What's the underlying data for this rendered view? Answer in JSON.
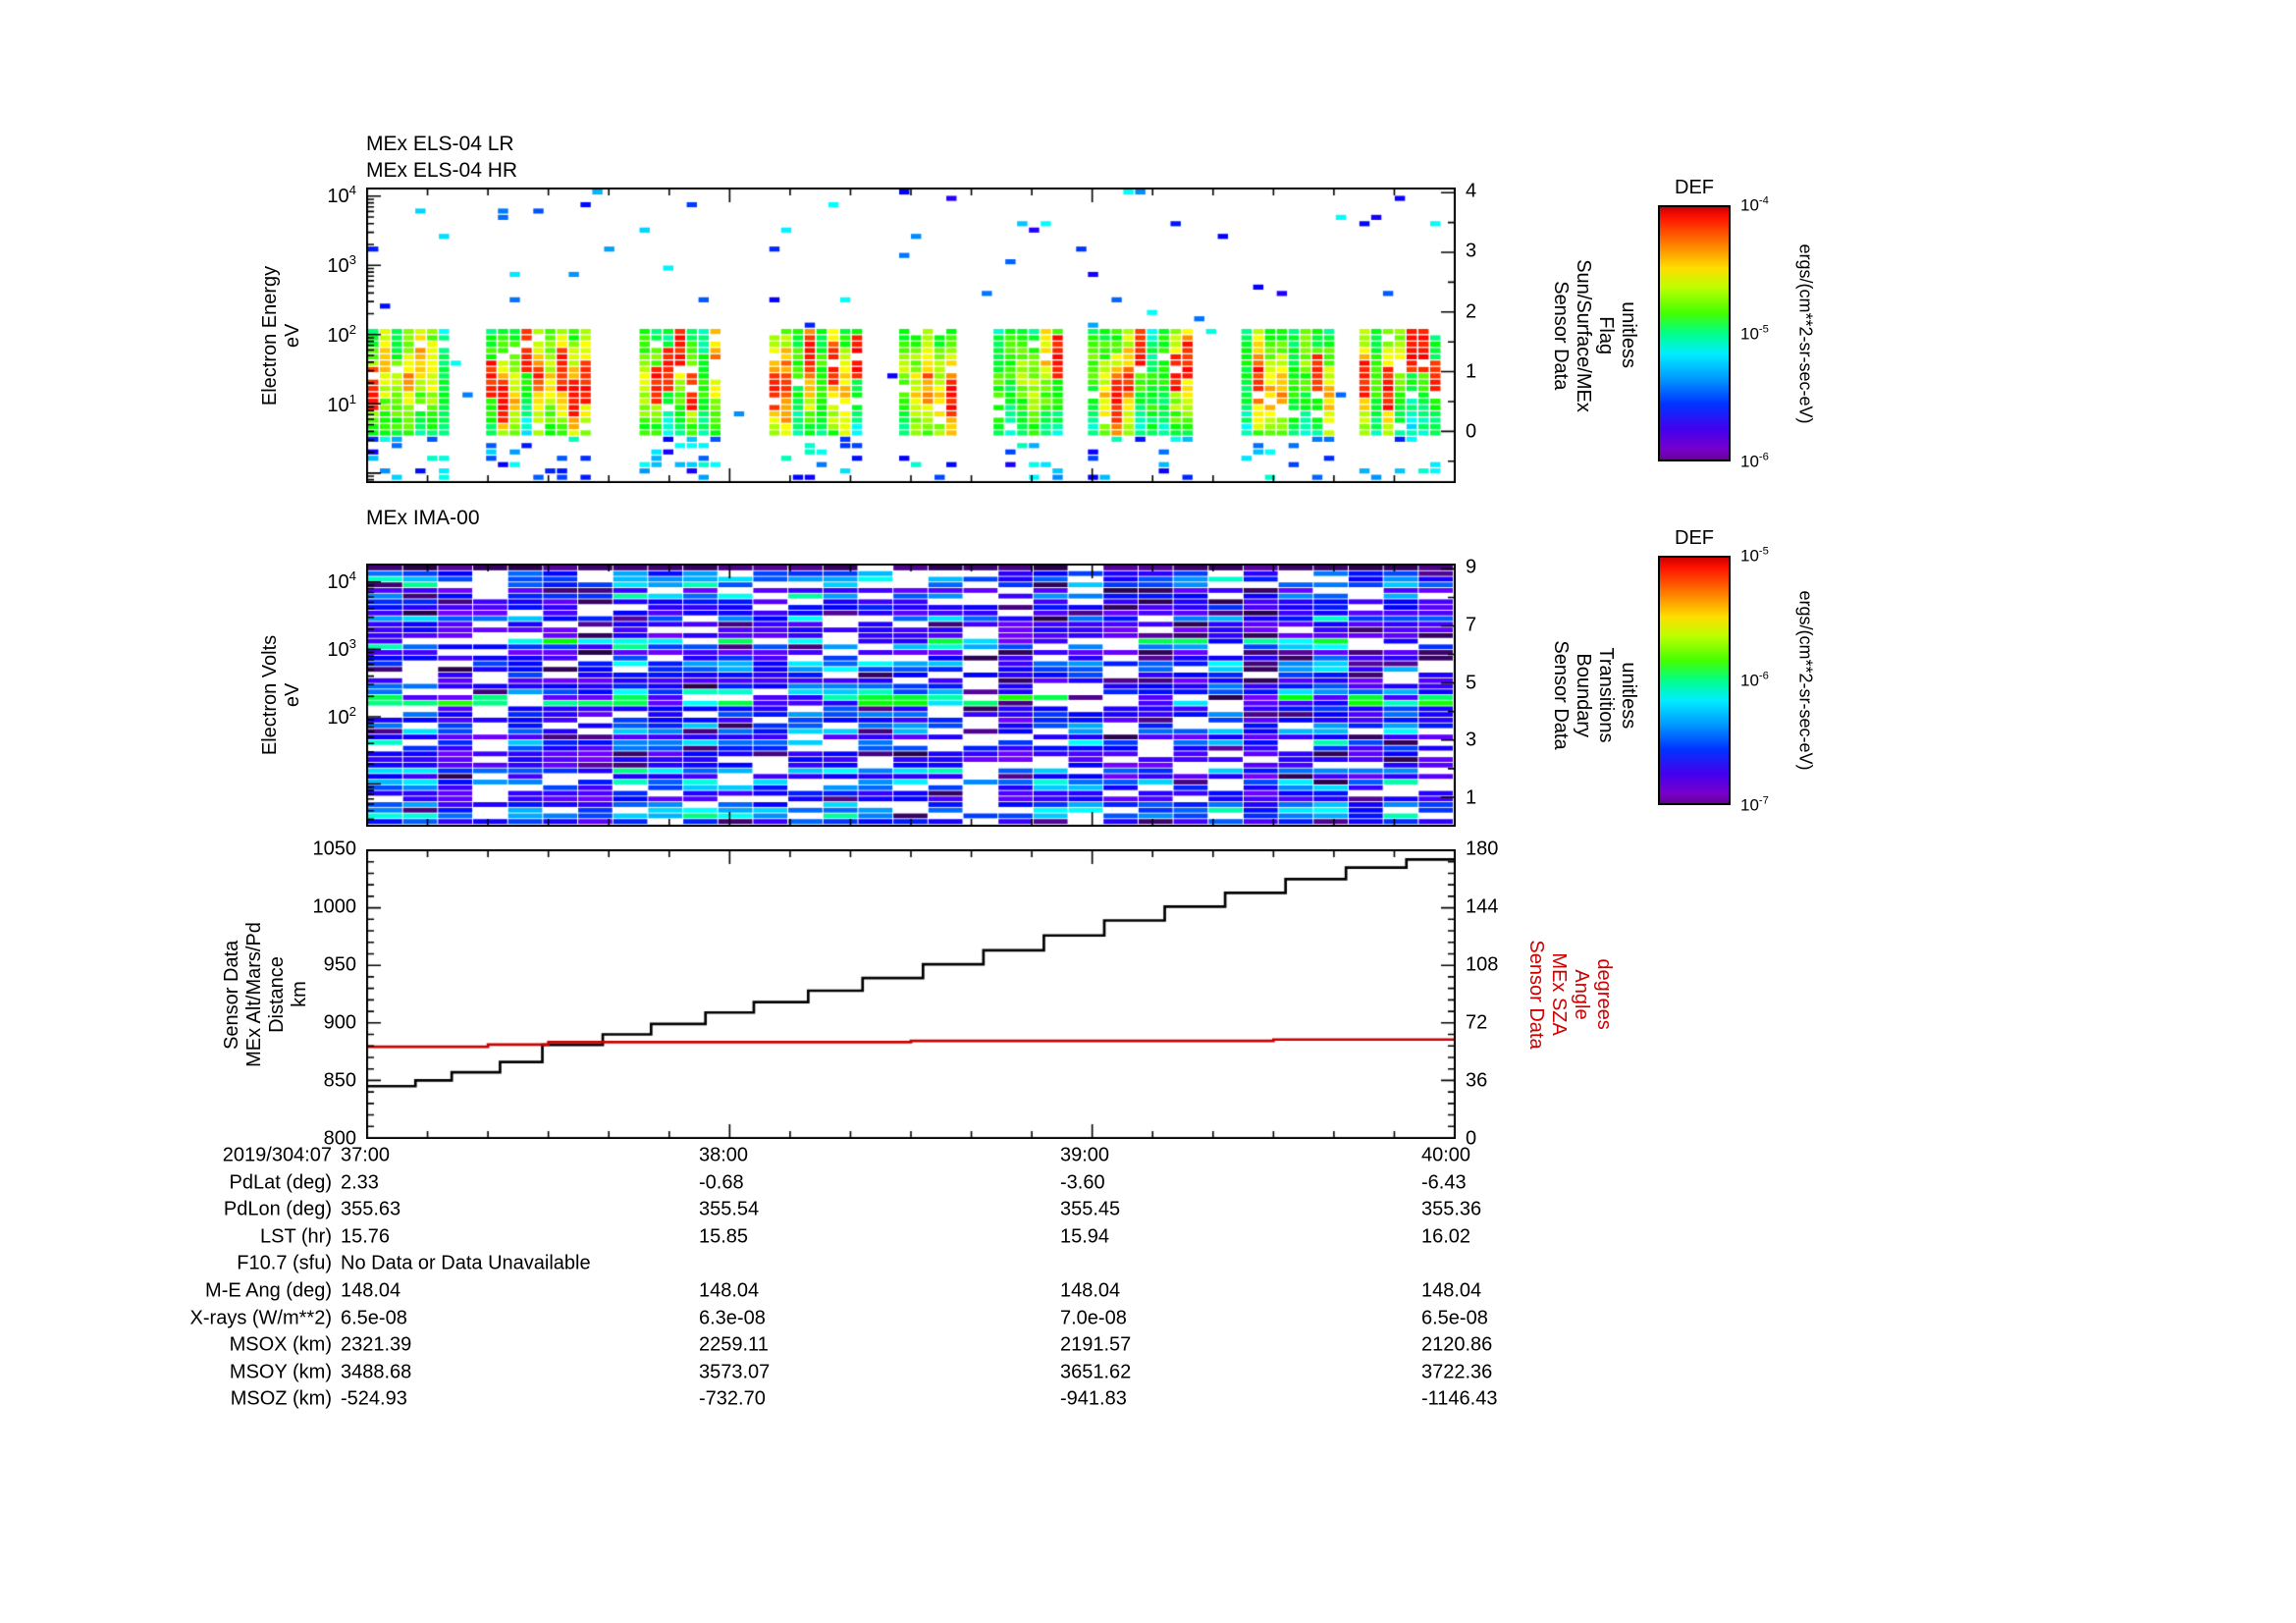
{
  "chart_data": [
    {
      "type": "heatmap",
      "id": "els",
      "title_lines": [
        "MEx ELS-04 LR",
        "MEx ELS-04 HR"
      ],
      "y_axis": {
        "label_lines": [
          "Electron Energy",
          "eV"
        ],
        "scale": "log",
        "range_exp": [
          -0.13,
          4.11
        ],
        "tick_exps": [
          4,
          3,
          2,
          1
        ]
      },
      "right_axis": {
        "label_lines": [
          "Sensor Data",
          "Sun/Surface/MEx",
          "Flag",
          "unitless"
        ],
        "range": [
          -0.85,
          4.07
        ],
        "ticks": [
          4,
          3,
          2,
          1,
          0
        ]
      },
      "z_axis": {
        "title": "DEF",
        "unit": "ergs/(cm**2-sr-sec-eV)",
        "tick_exps": [
          -4,
          -5,
          -6
        ]
      },
      "description": "Bursty electron spectrogram: intense 5-150 eV band (green-yellow-red, up to 1e-4) in groups separated by white data gaps; sparse blue low-flux points from 200 eV to 10 keV and below 5 eV",
      "pattern": {
        "seed": 20190304,
        "columns": 92,
        "burst_cols_min": 5,
        "burst_cols_max": 9,
        "gap_cols_min": 2,
        "gap_cols_max": 4,
        "band_exp": [
          0.55,
          2.1
        ],
        "peak_exp": [
          1.0,
          1.8
        ],
        "sparse_above_density": 0.035,
        "sparse_below_density": 0.22
      }
    },
    {
      "type": "heatmap",
      "id": "ima",
      "title_lines": [
        "MEx IMA-00"
      ],
      "y_axis": {
        "label_lines": [
          "Electron Volts",
          "eV"
        ],
        "scale": "log",
        "range_exp": [
          0.38,
          4.26
        ],
        "tick_exps": [
          4,
          3,
          2
        ]
      },
      "right_axis": {
        "label_lines": [
          "Sensor Data",
          "Boundary",
          "Transitions",
          "unitless"
        ],
        "range": [
          0,
          9.15
        ],
        "ticks": [
          9,
          7,
          5,
          3,
          1
        ]
      },
      "z_axis": {
        "title": "DEF",
        "unit": "ergs/(cm**2-sr-sec-eV)",
        "tick_exps": [
          -5,
          -6,
          -7
        ]
      },
      "description": "Dense ion spectrogram: mostly blue-violet fluxes near 1e-7 to 3e-6 with scattered white data gaps, a dark band along the top edge, and occasional cyan-green enhancements between ~100 eV and 3 keV",
      "pattern": {
        "seed": 41,
        "columns": 31,
        "stripes": 46,
        "white_fraction": 0.17,
        "bright_fraction": 0.07,
        "dark_fraction": 0.08
      }
    },
    {
      "type": "line",
      "id": "ephemeris",
      "x_start_label": "2019/304:07",
      "x_tick_labels": [
        "37:00",
        "38:00",
        "39:00",
        "40:00"
      ],
      "x_range_minutes": [
        0,
        180
      ],
      "y_axis": {
        "label_lines": [
          "Sensor Data",
          "MEx Alt/Mars/Pd",
          "Distance",
          "km"
        ],
        "range": [
          800,
          1050
        ],
        "ticks": [
          1050,
          1000,
          950,
          900,
          850,
          800
        ]
      },
      "right_axis": {
        "label_lines": [
          "Sensor Data",
          "MEx SZA",
          "Angle",
          "degrees"
        ],
        "range": [
          0,
          180
        ],
        "ticks": [
          180,
          144,
          108,
          72,
          36,
          0
        ],
        "color": "#cc0000"
      },
      "series": [
        {
          "name": "MEx Alt/Mars/Pd Distance",
          "axis": "left",
          "color": "#000000",
          "step": true,
          "points": [
            [
              0,
              845
            ],
            [
              8,
              850
            ],
            [
              14,
              857
            ],
            [
              22,
              866
            ],
            [
              29,
              881
            ],
            [
              39,
              890
            ],
            [
              47,
              899
            ],
            [
              56,
              909
            ],
            [
              64,
              918
            ],
            [
              73,
              928
            ],
            [
              82,
              939
            ],
            [
              92,
              951
            ],
            [
              102,
              963
            ],
            [
              112,
              976
            ],
            [
              122,
              989
            ],
            [
              132,
              1001
            ],
            [
              142,
              1013
            ],
            [
              152,
              1025
            ],
            [
              162,
              1035
            ],
            [
              172,
              1042
            ],
            [
              180,
              1043
            ]
          ]
        },
        {
          "name": "MEx SZA Angle",
          "axis": "right",
          "color": "#cc0000",
          "step": true,
          "points": [
            [
              0,
              57
            ],
            [
              20,
              58.5
            ],
            [
              30,
              60
            ],
            [
              90,
              60.8
            ],
            [
              150,
              61.6
            ],
            [
              180,
              61.8
            ]
          ]
        }
      ]
    }
  ],
  "table": {
    "rows": [
      {
        "label": "PdLat (deg)",
        "values": [
          "2.33",
          "-0.68",
          "-3.60",
          "-6.43"
        ]
      },
      {
        "label": "PdLon (deg)",
        "values": [
          "355.63",
          "355.54",
          "355.45",
          "355.36"
        ]
      },
      {
        "label": "LST (hr)",
        "values": [
          "15.76",
          "15.85",
          "15.94",
          "16.02"
        ]
      },
      {
        "label": "F10.7 (sfu)",
        "values": [
          "No Data or Data Unavailable"
        ],
        "span": true
      },
      {
        "label": "M-E Ang (deg)",
        "values": [
          "148.04",
          "148.04",
          "148.04",
          "148.04"
        ]
      },
      {
        "label": "X-rays (W/m**2)",
        "values": [
          "6.5e-08",
          "6.3e-08",
          "7.0e-08",
          "6.5e-08"
        ]
      },
      {
        "label": "MSOX (km)",
        "values": [
          "2321.39",
          "2259.11",
          "2191.57",
          "2120.86"
        ]
      },
      {
        "label": "MSOY (km)",
        "values": [
          "3488.68",
          "3573.07",
          "3651.62",
          "3722.36"
        ]
      },
      {
        "label": "MSOZ (km)",
        "values": [
          "-524.93",
          "-732.70",
          "-941.83",
          "-1146.43"
        ]
      }
    ]
  },
  "colorbars": [
    {
      "title": "DEF",
      "unit": "ergs/(cm**2-sr-sec-eV)",
      "tick_exps": [
        -4,
        -5,
        -6
      ]
    },
    {
      "title": "DEF",
      "unit": "ergs/(cm**2-sr-sec-eV)",
      "tick_exps": [
        -5,
        -6,
        -7
      ]
    }
  ]
}
